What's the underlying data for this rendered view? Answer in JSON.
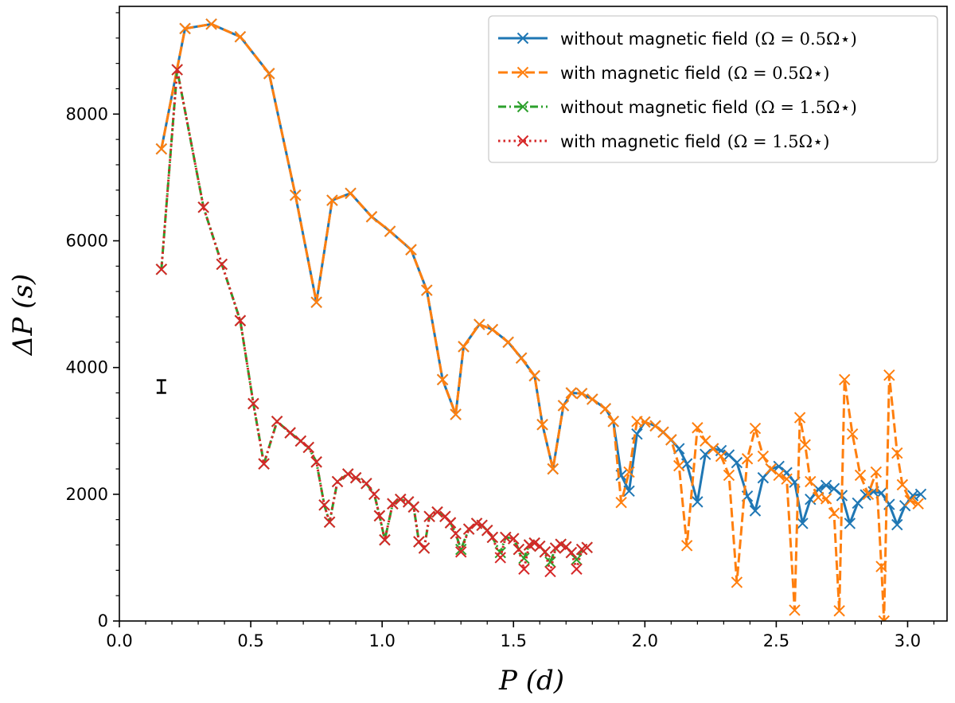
{
  "chart_data": {
    "type": "line",
    "xlabel": "P (d)",
    "ylabel": "ΔP (s)",
    "xlim": [
      0.0,
      3.15
    ],
    "ylim": [
      0,
      9700
    ],
    "xticks": [
      0.0,
      0.5,
      1.0,
      1.5,
      2.0,
      2.5,
      3.0
    ],
    "xtick_labels": [
      "0.0",
      "0.5",
      "1.0",
      "1.5",
      "2.0",
      "2.5",
      "3.0"
    ],
    "yticks": [
      0,
      2000,
      4000,
      6000,
      8000
    ],
    "ytick_labels": [
      "0",
      "2000",
      "4000",
      "6000",
      "8000"
    ],
    "legend_position": "top-right",
    "error_bar": {
      "x": 0.16,
      "y": 3700,
      "err": 100
    },
    "series": [
      {
        "name": "without magnetic field (Ω = 0.5Ω⋆)",
        "legend_text": "without magnetic field",
        "legend_math": "(Ω = 0.5Ω⋆)",
        "color": "#1f77b4",
        "dash": "solid",
        "x": [
          0.16,
          0.25,
          0.35,
          0.46,
          0.57,
          0.67,
          0.75,
          0.81,
          0.88,
          0.96,
          1.03,
          1.11,
          1.17,
          1.23,
          1.28,
          1.31,
          1.37,
          1.42,
          1.48,
          1.53,
          1.58,
          1.61,
          1.65,
          1.69,
          1.72,
          1.76,
          1.8,
          1.85,
          1.88,
          1.91,
          1.94,
          1.97,
          2.0,
          2.04,
          2.07,
          2.1,
          2.13,
          2.16,
          2.2,
          2.23,
          2.26,
          2.29,
          2.32,
          2.35,
          2.39,
          2.42,
          2.45,
          2.48,
          2.51,
          2.54,
          2.57,
          2.6,
          2.63,
          2.66,
          2.69,
          2.72,
          2.75,
          2.78,
          2.81,
          2.84,
          2.87,
          2.9,
          2.93,
          2.96,
          2.99,
          3.02,
          3.05
        ],
        "y": [
          7450,
          9350,
          9420,
          9220,
          8640,
          6720,
          5030,
          6640,
          6750,
          6380,
          6150,
          5860,
          5220,
          3810,
          3260,
          4330,
          4680,
          4600,
          4400,
          4150,
          3870,
          3100,
          2400,
          3400,
          3600,
          3590,
          3500,
          3350,
          3150,
          2300,
          2050,
          2950,
          3140,
          3080,
          2980,
          2860,
          2720,
          2480,
          1880,
          2630,
          2720,
          2690,
          2620,
          2500,
          1970,
          1740,
          2260,
          2400,
          2440,
          2340,
          2190,
          1540,
          1920,
          2080,
          2140,
          2090,
          1980,
          1540,
          1860,
          1990,
          2040,
          2020,
          1840,
          1520,
          1820,
          1980,
          2000
        ]
      },
      {
        "name": "with magnetic field (Ω = 0.5Ω⋆)",
        "legend_text": "with magnetic field",
        "legend_math": "(Ω = 0.5Ω⋆)",
        "color": "#ff7f0e",
        "dash": "dashed",
        "x": [
          0.16,
          0.25,
          0.35,
          0.46,
          0.57,
          0.67,
          0.75,
          0.81,
          0.88,
          0.96,
          1.03,
          1.11,
          1.17,
          1.23,
          1.28,
          1.31,
          1.37,
          1.42,
          1.48,
          1.53,
          1.58,
          1.61,
          1.65,
          1.69,
          1.72,
          1.76,
          1.8,
          1.85,
          1.88,
          1.91,
          1.94,
          1.97,
          2.0,
          2.04,
          2.07,
          2.1,
          2.13,
          2.16,
          2.2,
          2.23,
          2.26,
          2.29,
          2.32,
          2.35,
          2.39,
          2.42,
          2.45,
          2.48,
          2.51,
          2.54,
          2.57,
          2.59,
          2.61,
          2.63,
          2.66,
          2.69,
          2.72,
          2.74,
          2.76,
          2.79,
          2.82,
          2.85,
          2.88,
          2.9,
          2.91,
          2.93,
          2.96,
          2.98,
          3.01,
          3.04
        ],
        "y": [
          7450,
          9350,
          9420,
          9220,
          8640,
          6720,
          5030,
          6640,
          6750,
          6380,
          6150,
          5860,
          5220,
          3810,
          3260,
          4330,
          4680,
          4600,
          4400,
          4150,
          3870,
          3100,
          2400,
          3400,
          3600,
          3590,
          3500,
          3350,
          3150,
          1870,
          2350,
          3150,
          3140,
          3080,
          2980,
          2860,
          2450,
          1190,
          3050,
          2840,
          2720,
          2600,
          2300,
          610,
          2560,
          3040,
          2600,
          2400,
          2300,
          2240,
          170,
          3210,
          2780,
          2200,
          1950,
          1930,
          1700,
          160,
          3810,
          2950,
          2300,
          2000,
          2350,
          860,
          0,
          3880,
          2650,
          2150,
          1900,
          1850
        ]
      },
      {
        "name": "without magnetic field (Ω = 1.5Ω⋆)",
        "legend_text": "without magnetic field",
        "legend_math": "(Ω = 1.5Ω⋆)",
        "color": "#2ca02c",
        "dash": "dashdot",
        "x": [
          0.16,
          0.22,
          0.32,
          0.39,
          0.46,
          0.51,
          0.55,
          0.6,
          0.65,
          0.69,
          0.72,
          0.75,
          0.78,
          0.8,
          0.83,
          0.87,
          0.9,
          0.94,
          0.97,
          0.99,
          1.01,
          1.04,
          1.07,
          1.1,
          1.12,
          1.14,
          1.16,
          1.18,
          1.21,
          1.24,
          1.26,
          1.28,
          1.3,
          1.33,
          1.36,
          1.38,
          1.4,
          1.42,
          1.45,
          1.47,
          1.5,
          1.52,
          1.54,
          1.56,
          1.58,
          1.6,
          1.62,
          1.64,
          1.66,
          1.68,
          1.7,
          1.72,
          1.74,
          1.76,
          1.78
        ],
        "y": [
          5550,
          8700,
          6530,
          5630,
          4740,
          3430,
          2480,
          3150,
          2970,
          2840,
          2740,
          2510,
          1830,
          1560,
          2200,
          2320,
          2260,
          2170,
          2000,
          1660,
          1280,
          1850,
          1920,
          1880,
          1800,
          1250,
          1150,
          1650,
          1720,
          1650,
          1550,
          1380,
          1130,
          1450,
          1540,
          1510,
          1430,
          1320,
          1080,
          1320,
          1300,
          1130,
          990,
          1200,
          1230,
          1180,
          1090,
          930,
          1150,
          1210,
          1170,
          1080,
          970,
          1130,
          1160
        ]
      },
      {
        "name": "with magnetic field (Ω = 1.5Ω⋆)",
        "legend_text": "with magnetic field",
        "legend_math": "(Ω = 1.5Ω⋆)",
        "color": "#d62728",
        "dash": "dotted",
        "x": [
          0.16,
          0.22,
          0.32,
          0.39,
          0.46,
          0.51,
          0.55,
          0.6,
          0.65,
          0.69,
          0.72,
          0.75,
          0.78,
          0.8,
          0.83,
          0.87,
          0.9,
          0.94,
          0.97,
          0.99,
          1.01,
          1.04,
          1.07,
          1.1,
          1.12,
          1.14,
          1.16,
          1.18,
          1.21,
          1.24,
          1.26,
          1.28,
          1.3,
          1.33,
          1.36,
          1.38,
          1.4,
          1.42,
          1.45,
          1.47,
          1.5,
          1.52,
          1.54,
          1.56,
          1.58,
          1.6,
          1.62,
          1.64,
          1.66,
          1.68,
          1.7,
          1.72,
          1.74,
          1.76,
          1.78
        ],
        "y": [
          5550,
          8700,
          6530,
          5630,
          4740,
          3430,
          2480,
          3150,
          2970,
          2840,
          2740,
          2510,
          1830,
          1560,
          2200,
          2320,
          2260,
          2170,
          2000,
          1660,
          1280,
          1850,
          1920,
          1880,
          1800,
          1250,
          1150,
          1650,
          1720,
          1650,
          1550,
          1380,
          1090,
          1450,
          1540,
          1510,
          1430,
          1320,
          1000,
          1320,
          1300,
          1130,
          820,
          1200,
          1230,
          1180,
          1090,
          780,
          1150,
          1210,
          1170,
          1080,
          820,
          1130,
          1160
        ]
      }
    ]
  }
}
